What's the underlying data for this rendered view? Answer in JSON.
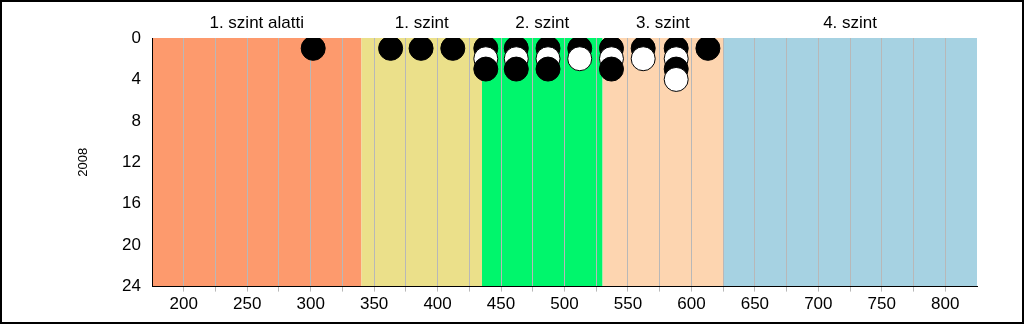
{
  "chart_data": {
    "type": "scatter",
    "ylabel": "2008",
    "xlim": [
      175,
      825
    ],
    "ylim": [
      24,
      0
    ],
    "xticks": [
      200,
      {
        "value": 225,
        "label": null
      },
      250,
      {
        "value": 275,
        "label": null
      },
      300,
      {
        "value": 325,
        "label": null
      },
      350,
      {
        "value": 375,
        "label": null
      },
      400,
      {
        "value": 425,
        "label": null
      },
      450,
      {
        "value": 475,
        "label": null
      },
      500,
      {
        "value": 525,
        "label": null
      },
      550,
      {
        "value": 575,
        "label": null
      },
      600,
      {
        "value": 625,
        "label": null
      },
      650,
      {
        "value": 675,
        "label": null
      },
      700,
      {
        "value": 725,
        "label": null
      },
      750,
      {
        "value": 775,
        "label": null
      },
      800
    ],
    "yticks": [
      0,
      4,
      8,
      12,
      16,
      20,
      24
    ],
    "grid": "x",
    "marker": "circle",
    "bands": [
      {
        "axis": "x",
        "from": 175,
        "to": 340,
        "label": "1. szint alatti",
        "color": "#fd9a6d"
      },
      {
        "axis": "x",
        "from": 340,
        "to": 435,
        "label": "1. szint",
        "color": "#ebe08a"
      },
      {
        "axis": "x",
        "from": 435,
        "to": 530,
        "label": "2. szint",
        "color": "#00f66c"
      },
      {
        "axis": "x",
        "from": 530,
        "to": 625,
        "label": "3. szint",
        "color": "#fdd5b0"
      },
      {
        "axis": "x",
        "from": 625,
        "to": 825,
        "label": "4. szint",
        "color": "#a6d2e2"
      }
    ],
    "series": [
      {
        "x": [
          302,
          363,
          387,
          412,
          438,
          438,
          438,
          462,
          462,
          462,
          487,
          487,
          487,
          512,
          512,
          537,
          537,
          537,
          562,
          562,
          588,
          588,
          588,
          588,
          613
        ],
        "values": [
          1,
          1,
          1,
          1,
          1,
          2,
          3,
          1,
          2,
          3,
          1,
          2,
          3,
          1,
          2,
          1,
          2,
          3,
          1,
          2,
          1,
          2,
          3,
          4,
          1
        ],
        "colors": [
          "#000000",
          "#000000",
          "#000000",
          "#000000",
          "#000000",
          "#ffffff",
          "#000000",
          "#000000",
          "#ffffff",
          "#000000",
          "#000000",
          "#ffffff",
          "#000000",
          "#000000",
          "#ffffff",
          "#000000",
          "#ffffff",
          "#000000",
          "#000000",
          "#ffffff",
          "#000000",
          "#ffffff",
          "#000000",
          "#ffffff",
          "#000000"
        ]
      }
    ]
  }
}
